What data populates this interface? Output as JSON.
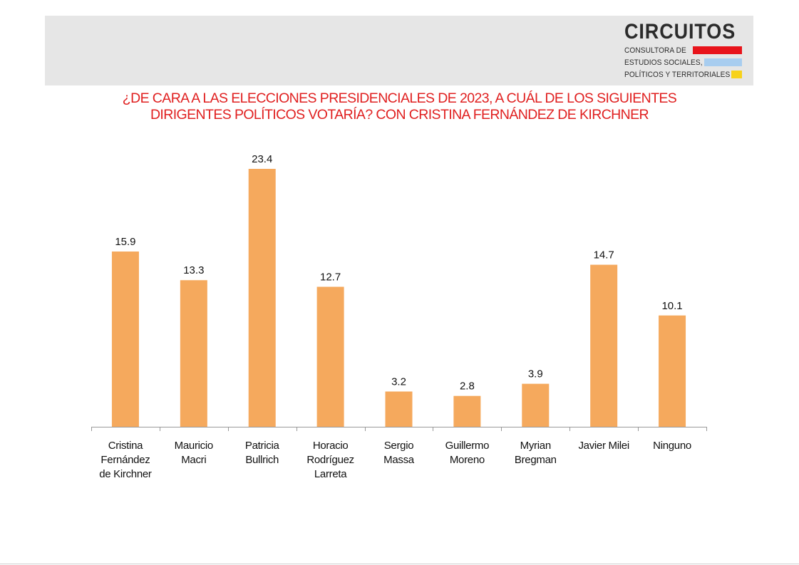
{
  "logo": {
    "name": "CIRCUITOS",
    "lines": [
      "CONSULTORA DE",
      "ESTUDIOS SOCIALES,",
      "POLÍTICOS Y TERRITORIALES"
    ],
    "bar_colors": [
      "#e8141b",
      "#a8cdef",
      "#f7d21a"
    ]
  },
  "colors": {
    "title": "#e02020",
    "bar": "#f5a95d",
    "header_band": "#e6e6e6"
  },
  "chart_data": {
    "type": "bar",
    "title_lines": [
      "¿DE CARA A LAS ELECCIONES PRESIDENCIALES DE 2023, A CUÁL DE LOS SIGUIENTES",
      "DIRIGENTES POLÍTICOS VOTARÍA? CON CRISTINA FERNÁNDEZ DE KIRCHNER"
    ],
    "categories": [
      [
        "Cristina",
        "Fernández",
        "de Kirchner"
      ],
      [
        "Mauricio",
        "Macri"
      ],
      [
        "Patricia",
        "Bullrich"
      ],
      [
        "Horacio",
        "Rodríguez",
        "Larreta"
      ],
      [
        "Sergio",
        "Massa"
      ],
      [
        "Guillermo",
        "Moreno"
      ],
      [
        "Myrian",
        "Bregman"
      ],
      [
        "Javier Milei"
      ],
      [
        "Ninguno"
      ]
    ],
    "values": [
      15.9,
      13.3,
      23.4,
      12.7,
      3.2,
      2.8,
      3.9,
      14.7,
      10.1
    ],
    "data_labels": [
      "15.9",
      "13.3",
      "23.4",
      "12.7",
      "3.2",
      "2.8",
      "3.9",
      "14.7",
      "10.1"
    ],
    "ylim": [
      0,
      23.4
    ],
    "grid": false,
    "legend": "none"
  }
}
